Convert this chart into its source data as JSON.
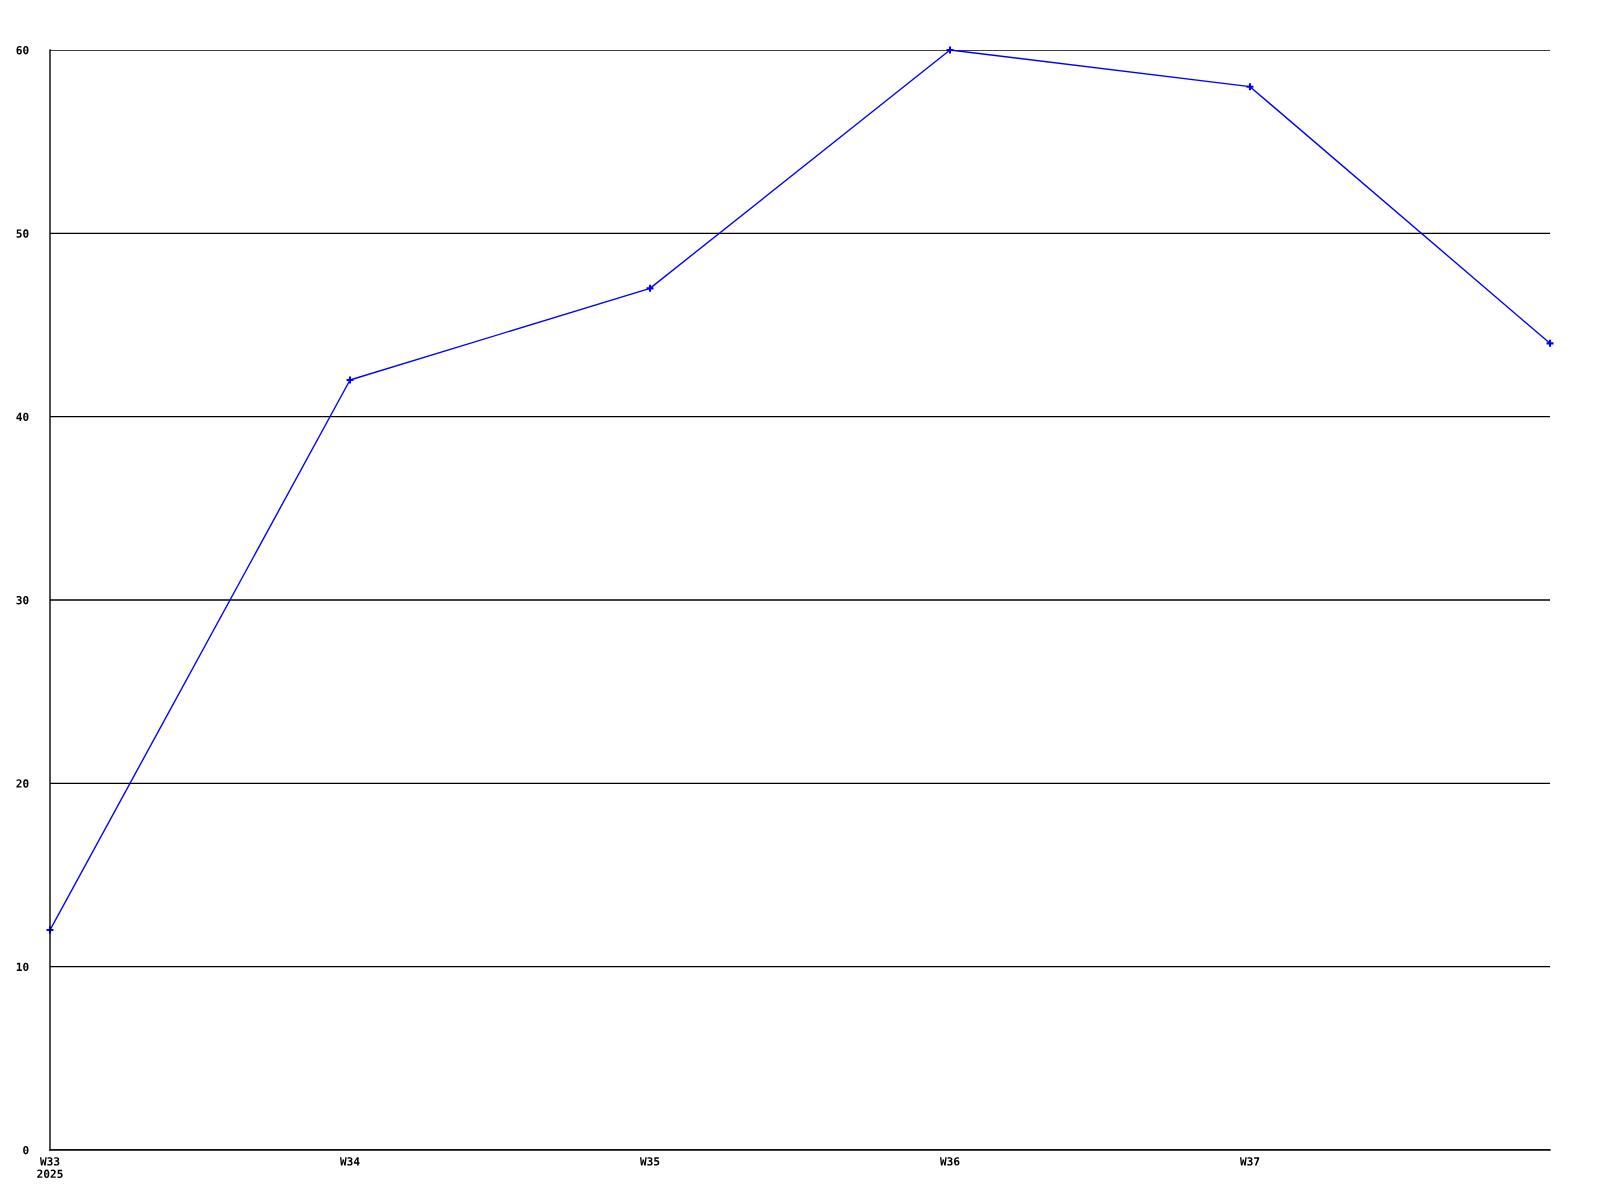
{
  "chart_data": {
    "type": "line",
    "categories": [
      "W33\n2025",
      "W34",
      "W35",
      "W36",
      "W37",
      null
    ],
    "series": [
      {
        "color": "#0000ff",
        "values": [
          12,
          42,
          47,
          60,
          58,
          44
        ]
      }
    ],
    "ylim": [
      0,
      60
    ],
    "yticks": [
      0,
      10,
      20,
      30,
      40,
      50,
      60
    ],
    "grid": "y",
    "marker": "cross",
    "line_style": "solid"
  }
}
